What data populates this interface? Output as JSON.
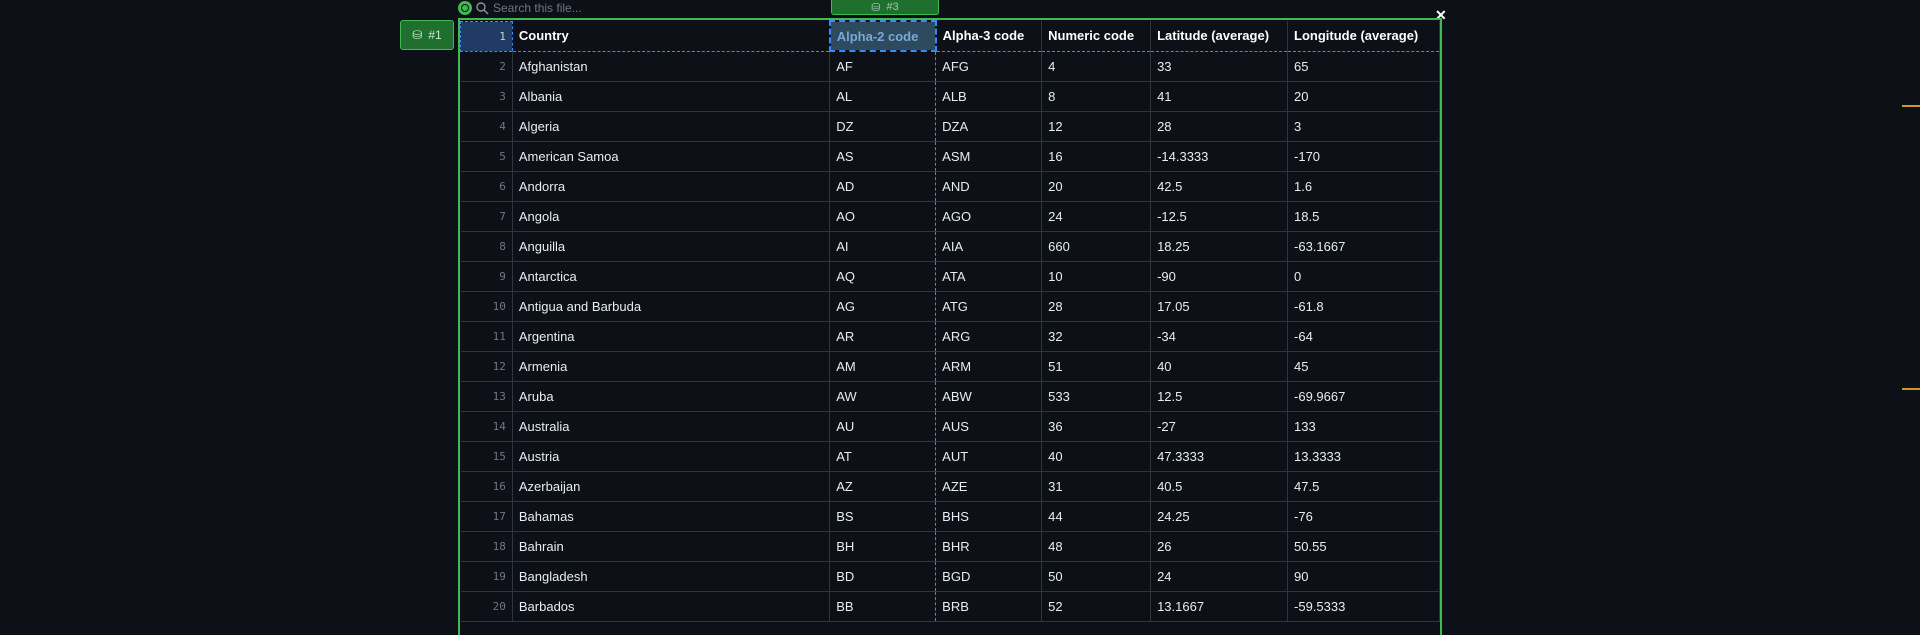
{
  "search": {
    "placeholder": "Search this file..."
  },
  "tags": {
    "left": "#1",
    "top": "#3"
  },
  "table": {
    "header_row_number": "1",
    "columns": [
      "Country",
      "Alpha-2 code",
      "Alpha-3 code",
      "Numeric code",
      "Latitude (average)",
      "Longitude (average)"
    ],
    "rows": [
      {
        "n": "2",
        "c": [
          "Afghanistan",
          "AF",
          "AFG",
          "4",
          "33",
          "65"
        ]
      },
      {
        "n": "3",
        "c": [
          "Albania",
          "AL",
          "ALB",
          "8",
          "41",
          "20"
        ]
      },
      {
        "n": "4",
        "c": [
          "Algeria",
          "DZ",
          "DZA",
          "12",
          "28",
          "3"
        ]
      },
      {
        "n": "5",
        "c": [
          "American Samoa",
          "AS",
          "ASM",
          "16",
          "-14.3333",
          "-170"
        ]
      },
      {
        "n": "6",
        "c": [
          "Andorra",
          "AD",
          "AND",
          "20",
          "42.5",
          "1.6"
        ]
      },
      {
        "n": "7",
        "c": [
          "Angola",
          "AO",
          "AGO",
          "24",
          "-12.5",
          "18.5"
        ]
      },
      {
        "n": "8",
        "c": [
          "Anguilla",
          "AI",
          "AIA",
          "660",
          "18.25",
          "-63.1667"
        ]
      },
      {
        "n": "9",
        "c": [
          "Antarctica",
          "AQ",
          "ATA",
          "10",
          "-90",
          "0"
        ]
      },
      {
        "n": "10",
        "c": [
          "Antigua and Barbuda",
          "AG",
          "ATG",
          "28",
          "17.05",
          "-61.8"
        ]
      },
      {
        "n": "11",
        "c": [
          "Argentina",
          "AR",
          "ARG",
          "32",
          "-34",
          "-64"
        ]
      },
      {
        "n": "12",
        "c": [
          "Armenia",
          "AM",
          "ARM",
          "51",
          "40",
          "45"
        ]
      },
      {
        "n": "13",
        "c": [
          "Aruba",
          "AW",
          "ABW",
          "533",
          "12.5",
          "-69.9667"
        ]
      },
      {
        "n": "14",
        "c": [
          "Australia",
          "AU",
          "AUS",
          "36",
          "-27",
          "133"
        ]
      },
      {
        "n": "15",
        "c": [
          "Austria",
          "AT",
          "AUT",
          "40",
          "47.3333",
          "13.3333"
        ]
      },
      {
        "n": "16",
        "c": [
          "Azerbaijan",
          "AZ",
          "AZE",
          "31",
          "40.5",
          "47.5"
        ]
      },
      {
        "n": "17",
        "c": [
          "Bahamas",
          "BS",
          "BHS",
          "44",
          "24.25",
          "-76"
        ]
      },
      {
        "n": "18",
        "c": [
          "Bahrain",
          "BH",
          "BHR",
          "48",
          "26",
          "50.55"
        ]
      },
      {
        "n": "19",
        "c": [
          "Bangladesh",
          "BD",
          "BGD",
          "50",
          "24",
          "90"
        ]
      },
      {
        "n": "20",
        "c": [
          "Barbados",
          "BB",
          "BRB",
          "52",
          "13.1667",
          "-59.5333"
        ]
      }
    ]
  },
  "colors": {
    "accent": "#3fb950",
    "selection": "#388bfd",
    "background": "#0d1117",
    "scroll_marker": "#d29922"
  }
}
